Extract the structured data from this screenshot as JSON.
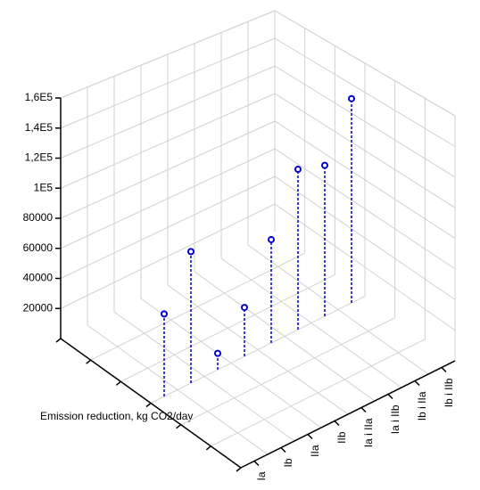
{
  "chart_data": {
    "type": "scatter3d",
    "axis_label": "Emission reduction, kg CO2/day",
    "categories": [
      "Ia",
      "Ib",
      "IIa",
      "IIb",
      "Ia i IIa",
      "Ia i IIb",
      "Ib i IIa",
      "Ib i IIb"
    ],
    "values": [
      55000,
      88000,
      11000,
      33000,
      70000,
      109000,
      103000,
      140000
    ],
    "color": "#0000cc",
    "ylim": [
      0,
      160000
    ],
    "yticks": [
      20000,
      40000,
      60000,
      80000,
      {
        "value": 100000,
        "label": "1E5"
      },
      {
        "value": 120000,
        "label": "1,2E5"
      },
      {
        "value": 140000,
        "label": "1,4E5"
      },
      {
        "value": 160000,
        "label": "1,6E5"
      }
    ],
    "grid": true
  }
}
